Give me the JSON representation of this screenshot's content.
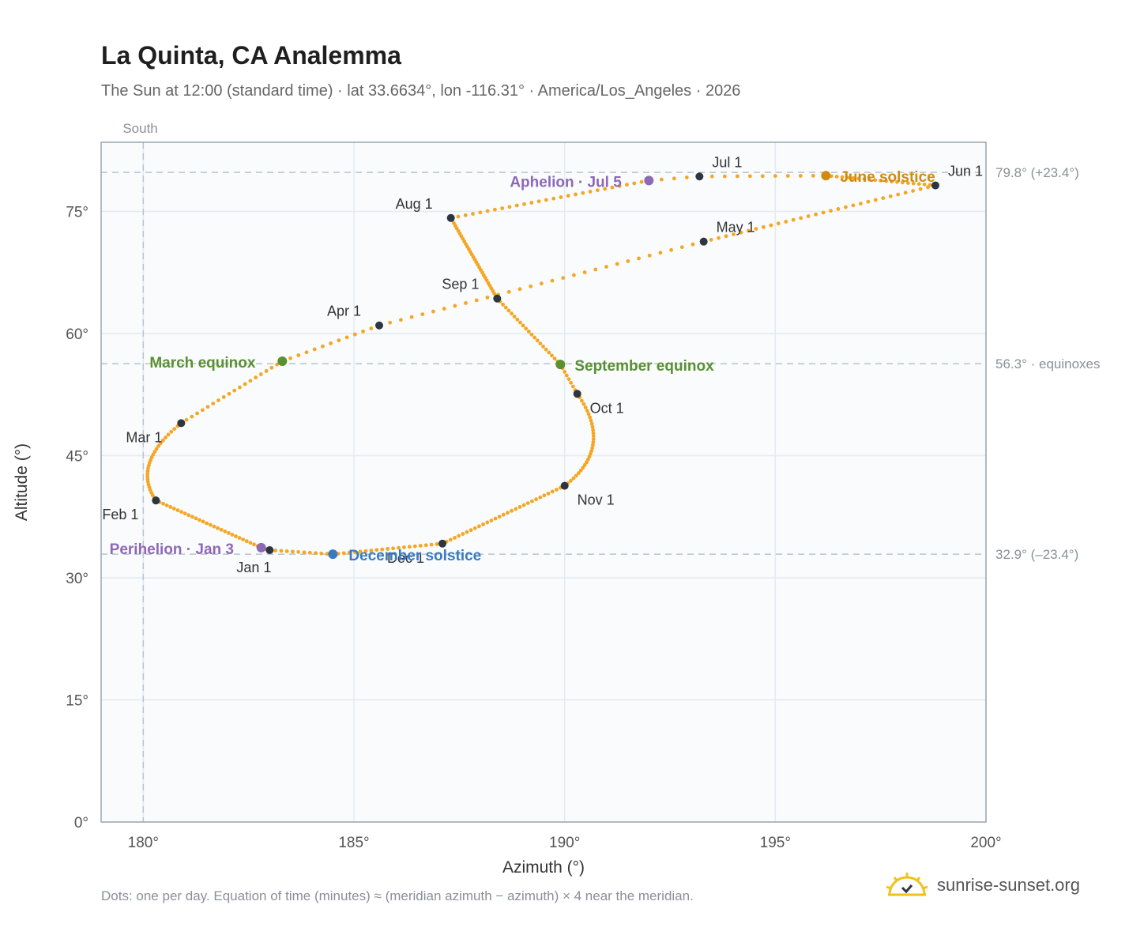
{
  "header": {
    "title": "La Quinta, CA Analemma",
    "subtitle": "The Sun at 12:00 (standard time) · lat 33.6634°, lon -116.31° · America/Los_Angeles · 2026"
  },
  "footnote": "Dots: one per day. Equation of time (minutes) ≈ (meridian azimuth − azimuth) × 4 near the meridian.",
  "brand": {
    "name": "sunrise-sunset.org",
    "icon": "sun-logo-icon",
    "color": "#f2c21b"
  },
  "chart_data": {
    "type": "scatter",
    "xlabel": "Azimuth (°)",
    "ylabel": "Altitude (°)",
    "xlim": [
      179,
      200
    ],
    "ylim": [
      0,
      83.5
    ],
    "xticks": [
      180,
      185,
      190,
      195,
      200
    ],
    "xtick_labels": [
      "180°",
      "185°",
      "190°",
      "195°",
      "200°"
    ],
    "yticks": [
      0,
      15,
      30,
      45,
      60,
      75
    ],
    "ytick_labels": [
      "0°",
      "15°",
      "30°",
      "45°",
      "60°",
      "75°"
    ],
    "grid": true,
    "meridian": {
      "azimuth": 180,
      "label": "South"
    },
    "reference_lines": [
      {
        "altitude": 79.8,
        "label": "79.8° (+23.4°)"
      },
      {
        "altitude": 56.3,
        "label": "56.3° · equinoxes"
      },
      {
        "altitude": 32.9,
        "label": "32.9° (–23.4°)"
      }
    ],
    "colors": {
      "path": "#f5a623",
      "month_marker": "#2d3540",
      "equinox": "#5a8f32",
      "june_solstice": "#cf8b0f",
      "december_solstice": "#3a7bbf",
      "apsis": "#8e68b5",
      "plot_background": "#f9fbfd",
      "grid": "#e4eaf0",
      "reference_line": "#b8c4ce"
    },
    "month_markers": [
      {
        "label": "Jan 1",
        "az": 183.0,
        "alt": 33.4
      },
      {
        "label": "Feb 1",
        "az": 180.3,
        "alt": 39.5
      },
      {
        "label": "Mar 1",
        "az": 180.9,
        "alt": 49.0
      },
      {
        "label": "Apr 1",
        "az": 185.6,
        "alt": 61.0
      },
      {
        "label": "May 1",
        "az": 193.3,
        "alt": 71.3
      },
      {
        "label": "Jun 1",
        "az": 198.8,
        "alt": 78.2
      },
      {
        "label": "Jul 1",
        "az": 193.2,
        "alt": 79.3
      },
      {
        "label": "Aug 1",
        "az": 187.3,
        "alt": 74.2
      },
      {
        "label": "Sep 1",
        "az": 188.4,
        "alt": 64.3
      },
      {
        "label": "Oct 1",
        "az": 190.3,
        "alt": 52.6
      },
      {
        "label": "Nov 1",
        "az": 190.0,
        "alt": 41.3
      },
      {
        "label": "Dec 1",
        "az": 187.1,
        "alt": 34.2
      }
    ],
    "events": [
      {
        "label": "March equinox",
        "az": 183.3,
        "alt": 56.6,
        "kind": "equinox"
      },
      {
        "label": "September equinox",
        "az": 189.9,
        "alt": 56.2,
        "kind": "equinox"
      },
      {
        "label": "June solstice",
        "az": 196.2,
        "alt": 79.4,
        "kind": "june_solstice"
      },
      {
        "label": "December solstice",
        "az": 184.5,
        "alt": 32.9,
        "kind": "december_solstice"
      },
      {
        "label": "Aphelion · Jul 5",
        "az": 192.0,
        "alt": 78.8,
        "kind": "apsis"
      },
      {
        "label": "Perihelion · Jan 3",
        "az": 182.8,
        "alt": 33.7,
        "kind": "apsis"
      }
    ]
  }
}
